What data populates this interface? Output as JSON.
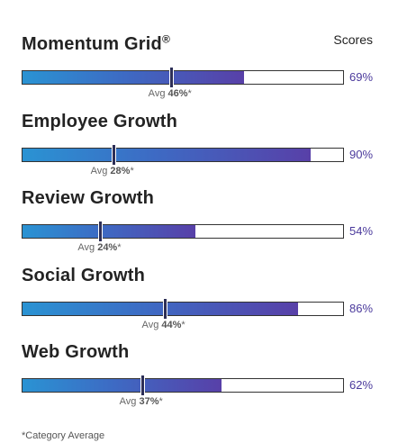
{
  "header": {
    "scores_label": "Scores"
  },
  "metrics": [
    {
      "title": "Momentum Grid",
      "title_mark": "®",
      "score": 0.69,
      "score_label": "69%",
      "avg": 0.46,
      "avg_prefix": "Avg",
      "avg_value": "46%",
      "avg_suffix": "*"
    },
    {
      "title": "Employee Growth",
      "title_mark": "",
      "score": 0.9,
      "score_label": "90%",
      "avg": 0.28,
      "avg_prefix": "Avg",
      "avg_value": "28%",
      "avg_suffix": "*"
    },
    {
      "title": "Review Growth",
      "title_mark": "",
      "score": 0.54,
      "score_label": "54%",
      "avg": 0.24,
      "avg_prefix": "Avg",
      "avg_value": "24%",
      "avg_suffix": "*"
    },
    {
      "title": "Social Growth",
      "title_mark": "",
      "score": 0.86,
      "score_label": "86%",
      "avg": 0.44,
      "avg_prefix": "Avg",
      "avg_value": "44%",
      "avg_suffix": "*"
    },
    {
      "title": "Web Growth",
      "title_mark": "",
      "score": 0.62,
      "score_label": "62%",
      "avg": 0.37,
      "avg_prefix": "Avg",
      "avg_value": "37%",
      "avg_suffix": "*"
    }
  ],
  "footnote": "*Category Average",
  "colors": {
    "accent": "#4b3a9c",
    "bar_start": "#2a93d3",
    "bar_end": "#5840a8",
    "marker": "#2d2f57"
  }
}
